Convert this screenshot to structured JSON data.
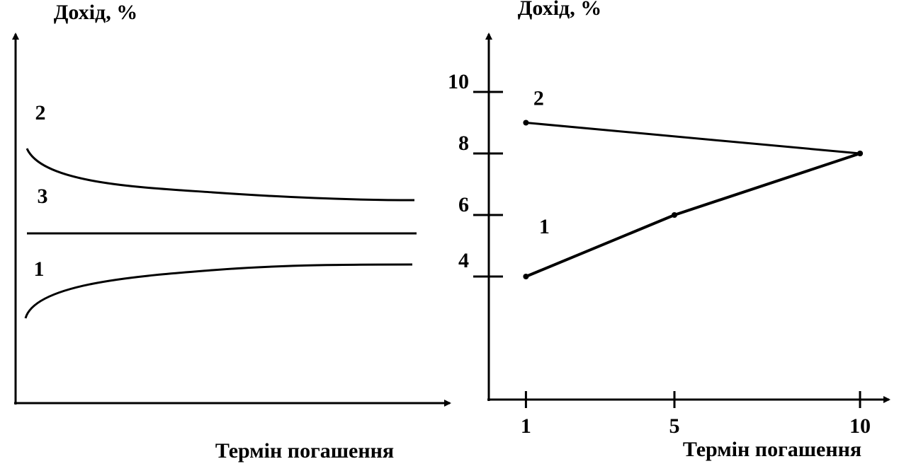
{
  "chart_data": [
    {
      "type": "schematic",
      "y_label": "Дохід, %",
      "x_label": "Термін погашення",
      "series": [
        {
          "name": "2"
        },
        {
          "name": "3"
        },
        {
          "name": "1"
        }
      ]
    },
    {
      "type": "line",
      "y_label": "Дохід, %",
      "x_label": "Термін погашення",
      "xlim": [
        0,
        10.8
      ],
      "ylim": [
        0,
        12
      ],
      "xticks": [
        1,
        5,
        10
      ],
      "yticks": [
        4,
        6,
        8,
        10
      ],
      "series": [
        {
          "name": "2",
          "color": "#000000",
          "x": [
            1,
            10
          ],
          "values": [
            9,
            8
          ]
        },
        {
          "name": "1",
          "color": "#000000",
          "x": [
            1,
            5,
            10
          ],
          "values": [
            4,
            6,
            8
          ]
        }
      ]
    }
  ]
}
